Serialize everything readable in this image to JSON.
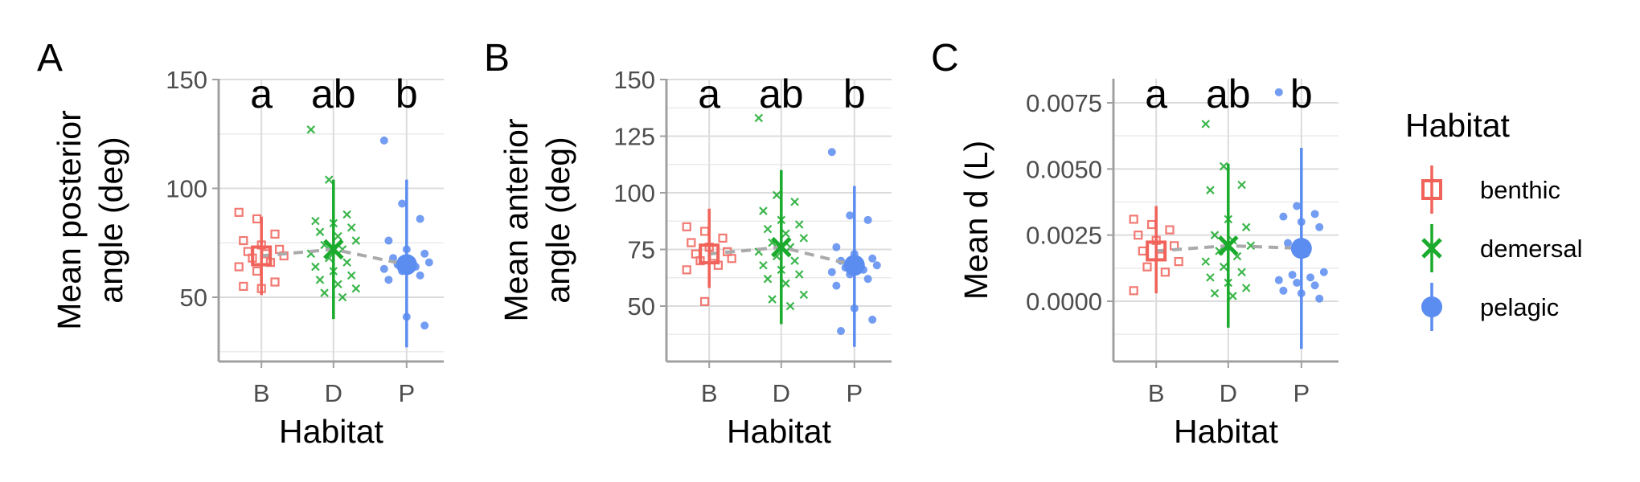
{
  "colors": {
    "benthic": "#F0625A",
    "demersal": "#1AAA2C",
    "pelagic": "#5B8CF0",
    "trend": "#AAAAAA",
    "grid": "#DCDCDC",
    "axis": "#A0A0A0"
  },
  "legend": {
    "title": "Habitat",
    "items": [
      {
        "key": "benthic",
        "label": "benthic",
        "icon": "hollow-square-icon"
      },
      {
        "key": "demersal",
        "label": "demersal",
        "icon": "cross-x-icon"
      },
      {
        "key": "pelagic",
        "label": "pelagic",
        "icon": "filled-circle-icon"
      }
    ]
  },
  "chart_data": [
    {
      "panel": "A",
      "type": "scatter",
      "ylabel": [
        "Mean posterior",
        "angle (deg)"
      ],
      "xlabel": "Habitat",
      "categories": [
        "B",
        "D",
        "P"
      ],
      "ylim": [
        20,
        150
      ],
      "yticks": [
        50,
        100,
        150
      ],
      "ytick_labels": [
        "50",
        "100",
        "150"
      ],
      "grid": true,
      "letters": [
        "a",
        "ab",
        "b"
      ],
      "series": [
        {
          "name": "benthic",
          "mean": 69,
          "lower": 51,
          "upper": 87,
          "points": [
            89,
            86,
            79,
            76,
            74,
            72,
            71,
            70,
            69,
            68,
            66,
            64,
            62,
            57,
            55,
            54
          ]
        },
        {
          "name": "demersal",
          "mean": 72,
          "lower": 40,
          "upper": 104,
          "points": [
            127,
            104,
            88,
            85,
            84,
            82,
            80,
            78,
            76,
            74,
            72,
            70,
            68,
            66,
            64,
            62,
            60,
            58,
            56,
            54,
            52,
            50
          ]
        },
        {
          "name": "pelagic",
          "mean": 65,
          "lower": 27,
          "upper": 104,
          "points": [
            122,
            93,
            86,
            76,
            72,
            70,
            68,
            67,
            66,
            65,
            64,
            63,
            62,
            60,
            58,
            41,
            37
          ]
        }
      ]
    },
    {
      "panel": "B",
      "type": "scatter",
      "ylabel": [
        "Mean anterior",
        "angle (deg)"
      ],
      "xlabel": "Habitat",
      "categories": [
        "B",
        "D",
        "P"
      ],
      "ylim": [
        30,
        150
      ],
      "yticks": [
        50,
        75,
        100,
        125,
        150
      ],
      "ytick_labels": [
        "50",
        "75",
        "100",
        "125",
        "150"
      ],
      "grid": true,
      "letters": [
        "a",
        "ab",
        "b"
      ],
      "series": [
        {
          "name": "benthic",
          "mean": 73,
          "lower": 58,
          "upper": 93,
          "points": [
            85,
            83,
            80,
            78,
            76,
            74,
            73,
            72,
            71,
            70,
            68,
            66,
            52
          ]
        },
        {
          "name": "demersal",
          "mean": 76,
          "lower": 42,
          "upper": 110,
          "points": [
            133,
            99,
            96,
            92,
            88,
            86,
            84,
            82,
            80,
            78,
            76,
            74,
            72,
            70,
            68,
            66,
            64,
            62,
            60,
            55,
            53,
            50
          ]
        },
        {
          "name": "pelagic",
          "mean": 68,
          "lower": 32,
          "upper": 103,
          "points": [
            118,
            90,
            88,
            76,
            73,
            71,
            70,
            69,
            68,
            67,
            66,
            65,
            64,
            62,
            59,
            49,
            44,
            39
          ]
        }
      ]
    },
    {
      "panel": "C",
      "type": "scatter",
      "ylabel": [
        "Mean d (L)"
      ],
      "xlabel": "Habitat",
      "categories": [
        "B",
        "D",
        "P"
      ],
      "ylim": [
        -0.0022,
        0.0084
      ],
      "yticks": [
        0.0,
        0.0025,
        0.005,
        0.0075
      ],
      "ytick_labels": [
        "0.0000",
        "0.0025",
        "0.0050",
        "0.0075"
      ],
      "grid": true,
      "letters": [
        "a",
        "ab",
        "b"
      ],
      "series": [
        {
          "name": "benthic",
          "mean": 0.0019,
          "lower": 0.0003,
          "upper": 0.0036,
          "points": [
            0.0031,
            0.0029,
            0.0027,
            0.0025,
            0.0023,
            0.0021,
            0.0019,
            0.0017,
            0.0015,
            0.0013,
            0.0011,
            0.0004
          ]
        },
        {
          "name": "demersal",
          "mean": 0.0021,
          "lower": -0.001,
          "upper": 0.0052,
          "points": [
            0.0067,
            0.0051,
            0.0044,
            0.0042,
            0.0031,
            0.0028,
            0.0025,
            0.0023,
            0.0021,
            0.0019,
            0.0017,
            0.0015,
            0.0013,
            0.0011,
            0.0009,
            0.0007,
            0.0005,
            0.0003,
            0.0002
          ]
        },
        {
          "name": "pelagic",
          "mean": 0.002,
          "lower": -0.0018,
          "upper": 0.0058,
          "points": [
            0.0079,
            0.0036,
            0.0033,
            0.0032,
            0.003,
            0.0028,
            0.0022,
            0.0018,
            0.0011,
            0.001,
            0.0009,
            0.0008,
            0.0007,
            0.0006,
            0.0004,
            0.0003,
            0.0001
          ]
        }
      ]
    }
  ]
}
